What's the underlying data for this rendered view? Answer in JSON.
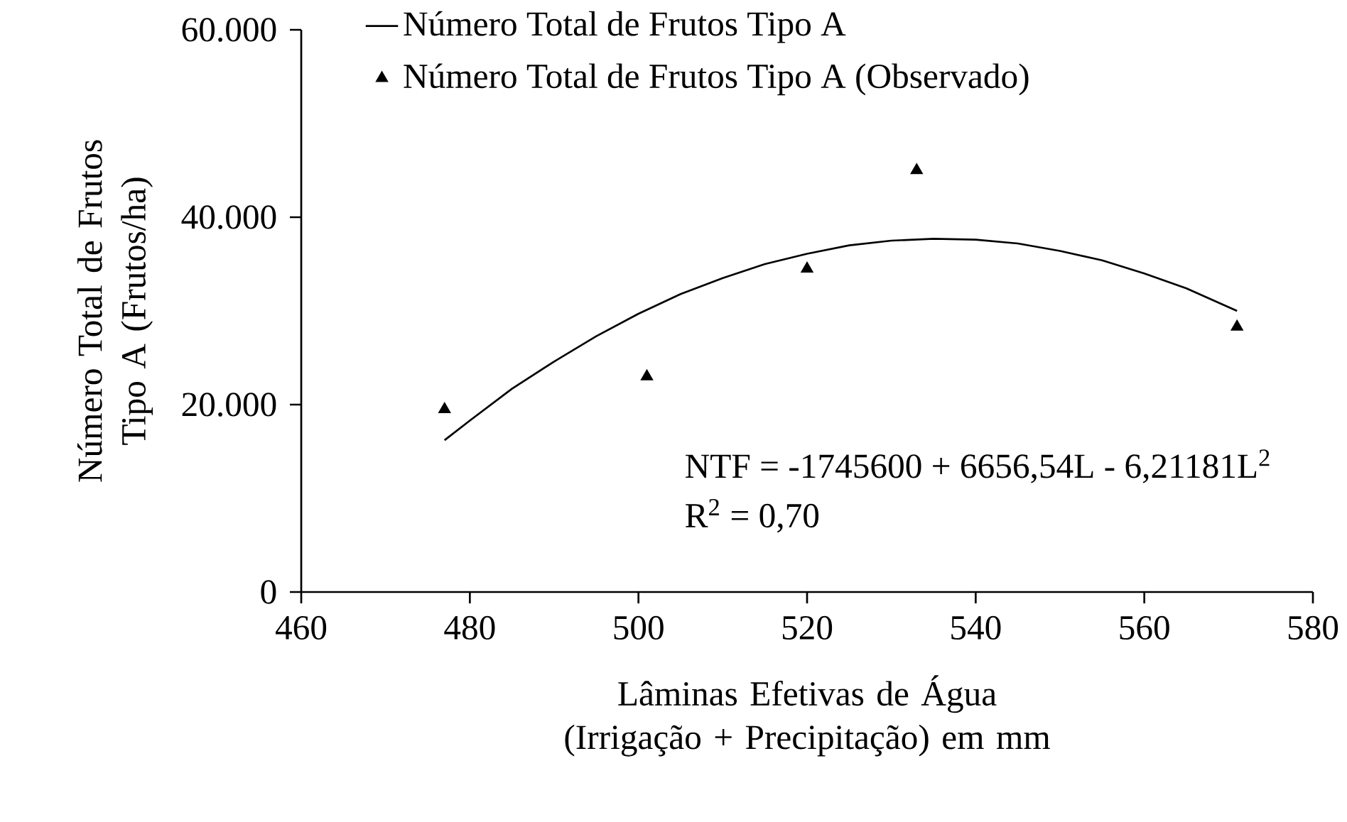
{
  "chart_data": {
    "type": "scatter",
    "xlabel": "Lâminas Efetivas de Água (Irrigação + Precipitação) em mm",
    "ylabel": "Número Total de Frutos Tipo A (Frutos/ha)",
    "xlim": [
      460,
      580
    ],
    "xticks": [
      460,
      480,
      500,
      520,
      540,
      560,
      580
    ],
    "ylim": [
      0,
      60000
    ],
    "yticks": [
      0,
      {
        "value": 20000,
        "label": "20.000"
      },
      {
        "value": 40000,
        "label": "40.000"
      },
      {
        "value": 60000,
        "label": "60.000"
      }
    ],
    "grid": false,
    "legend": "top",
    "annotations": [
      "NTF = -1745600 + 6656,54L - 6,21181L$^{2}$",
      "R$^{2}$ = 0,70"
    ],
    "series": [
      {
        "name": "Número Total de Frutos Tipo A",
        "type": "line",
        "marker": "none",
        "color": "#000000",
        "x": [
          477,
          480,
          485,
          490,
          495,
          500,
          505,
          510,
          515,
          520,
          525,
          530,
          535,
          540,
          545,
          550,
          555,
          560,
          565,
          571
        ],
        "values": [
          16200,
          18300,
          21700,
          24600,
          27300,
          29700,
          31800,
          33500,
          35000,
          36100,
          37000,
          37500,
          37700,
          37600,
          37200,
          36400,
          35400,
          34000,
          32400,
          30000
        ]
      },
      {
        "name": "Número Total de Frutos Tipo A (Observado)",
        "type": "scatter",
        "marker": "triangle",
        "color": "#000000",
        "x": [
          477,
          501,
          520,
          533,
          571
        ],
        "values": [
          19500,
          23000,
          34500,
          45000,
          28300
        ]
      }
    ]
  }
}
